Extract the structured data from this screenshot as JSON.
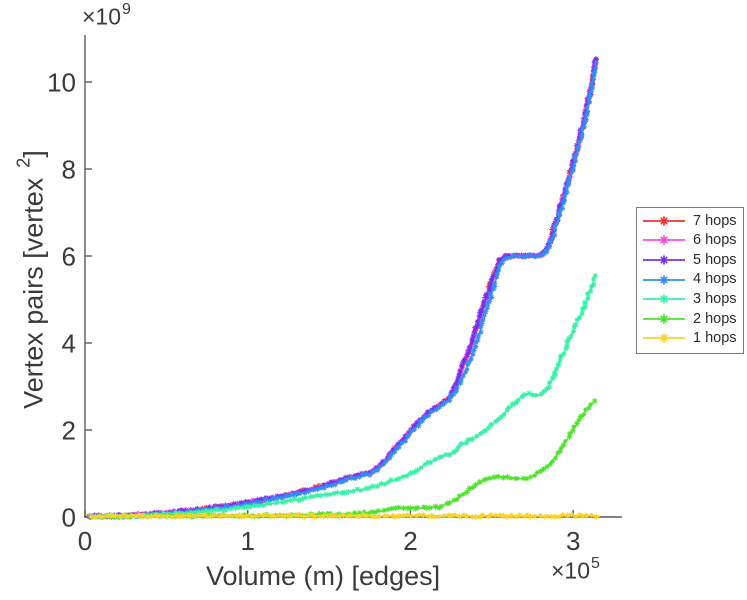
{
  "figure": {
    "background": "#ffffff",
    "axis_color": "#5a5a5a",
    "text_color": "#3a3a3a",
    "legend_border_color": "#7a7a7a"
  },
  "chart_data": {
    "type": "line",
    "title": "",
    "xlabel": "Volume (m) [edges]",
    "ylabel": "Vertex pairs [vertex²]",
    "ylabel_parts": {
      "pre": "Vertex pairs [vertex",
      "sup": "2",
      "post": "]"
    },
    "x_offset": {
      "base": "×10",
      "exp": "5"
    },
    "y_offset": {
      "base": "×10",
      "exp": "9"
    },
    "x_units": "edges (x values in units of 1e5)",
    "y_units": "vertex pairs (y values in units of 1e9)",
    "xlim": [
      0,
      3.3
    ],
    "ylim": [
      0,
      11.08
    ],
    "xticks": [
      0,
      1,
      2,
      3
    ],
    "yticks": [
      0,
      2,
      4,
      6,
      8,
      10
    ],
    "grid": false,
    "marker": "asterisk",
    "legend": {
      "position": "right-outside"
    },
    "series": [
      {
        "name": "7 hops",
        "color": "#f5322a",
        "x": [
          0.03,
          0.15,
          0.3,
          0.45,
          0.6,
          0.75,
          0.9,
          1.05,
          1.2,
          1.35,
          1.5,
          1.6,
          1.68,
          1.75,
          1.8,
          1.85,
          1.9,
          1.95,
          2.0,
          2.05,
          2.1,
          2.15,
          2.2,
          2.24,
          2.28,
          2.32,
          2.36,
          2.4,
          2.44,
          2.48,
          2.52,
          2.55,
          2.58,
          2.65,
          2.72,
          2.8,
          2.84,
          2.88,
          2.92,
          2.96,
          3.0,
          3.04,
          3.08,
          3.11,
          3.14
        ],
        "y": [
          0.02,
          0.03,
          0.05,
          0.09,
          0.14,
          0.2,
          0.27,
          0.37,
          0.48,
          0.6,
          0.76,
          0.88,
          0.97,
          1.02,
          1.15,
          1.32,
          1.55,
          1.75,
          1.98,
          2.18,
          2.36,
          2.5,
          2.62,
          2.75,
          3.05,
          3.45,
          3.85,
          4.3,
          4.75,
          5.2,
          5.65,
          5.92,
          6.0,
          6.0,
          6.0,
          6.02,
          6.15,
          6.6,
          7.1,
          7.6,
          8.15,
          8.7,
          9.35,
          9.9,
          10.55
        ]
      },
      {
        "name": "6 hops",
        "color": "#f44fe2",
        "x": [
          0.03,
          0.15,
          0.3,
          0.45,
          0.6,
          0.75,
          0.9,
          1.05,
          1.2,
          1.35,
          1.5,
          1.6,
          1.68,
          1.75,
          1.8,
          1.85,
          1.9,
          1.95,
          2.0,
          2.05,
          2.1,
          2.15,
          2.2,
          2.24,
          2.28,
          2.32,
          2.36,
          2.4,
          2.44,
          2.48,
          2.52,
          2.55,
          2.58,
          2.65,
          2.72,
          2.8,
          2.84,
          2.88,
          2.92,
          2.96,
          3.0,
          3.04,
          3.08,
          3.11,
          3.14
        ],
        "y": [
          0.02,
          0.03,
          0.05,
          0.09,
          0.14,
          0.2,
          0.27,
          0.37,
          0.48,
          0.6,
          0.76,
          0.88,
          0.97,
          1.02,
          1.15,
          1.32,
          1.55,
          1.75,
          1.98,
          2.18,
          2.36,
          2.5,
          2.62,
          2.75,
          3.05,
          3.45,
          3.85,
          4.3,
          4.75,
          5.2,
          5.65,
          5.92,
          6.0,
          6.0,
          6.0,
          6.02,
          6.15,
          6.6,
          7.1,
          7.6,
          8.15,
          8.7,
          9.35,
          9.9,
          10.55
        ]
      },
      {
        "name": "5 hops",
        "color": "#7430f0",
        "x": [
          0.03,
          0.15,
          0.3,
          0.45,
          0.6,
          0.75,
          0.9,
          1.05,
          1.2,
          1.35,
          1.5,
          1.6,
          1.68,
          1.75,
          1.8,
          1.85,
          1.9,
          1.95,
          2.0,
          2.05,
          2.1,
          2.15,
          2.2,
          2.24,
          2.28,
          2.32,
          2.36,
          2.4,
          2.44,
          2.48,
          2.52,
          2.55,
          2.58,
          2.65,
          2.72,
          2.8,
          2.84,
          2.88,
          2.92,
          2.96,
          3.0,
          3.04,
          3.08,
          3.11,
          3.14
        ],
        "y": [
          0.02,
          0.03,
          0.05,
          0.09,
          0.14,
          0.2,
          0.27,
          0.37,
          0.48,
          0.6,
          0.76,
          0.88,
          0.97,
          1.02,
          1.15,
          1.32,
          1.55,
          1.75,
          1.98,
          2.18,
          2.36,
          2.5,
          2.62,
          2.75,
          3.05,
          3.45,
          3.85,
          4.3,
          4.75,
          5.2,
          5.65,
          5.92,
          6.0,
          6.0,
          6.0,
          6.02,
          6.15,
          6.6,
          7.1,
          7.6,
          8.15,
          8.7,
          9.35,
          9.9,
          10.55
        ]
      },
      {
        "name": "4 hops",
        "color": "#338df5",
        "x": [
          0.03,
          0.15,
          0.3,
          0.45,
          0.6,
          0.75,
          0.9,
          1.05,
          1.2,
          1.35,
          1.5,
          1.6,
          1.68,
          1.75,
          1.8,
          1.85,
          1.9,
          1.95,
          2.0,
          2.05,
          2.1,
          2.15,
          2.2,
          2.24,
          2.28,
          2.32,
          2.36,
          2.4,
          2.44,
          2.48,
          2.52,
          2.56,
          2.6,
          2.65,
          2.72,
          2.8,
          2.84,
          2.88,
          2.92,
          2.96,
          3.0,
          3.04,
          3.08,
          3.11,
          3.14
        ],
        "y": [
          0.01,
          0.01,
          0.02,
          0.05,
          0.1,
          0.16,
          0.23,
          0.33,
          0.44,
          0.56,
          0.72,
          0.84,
          0.93,
          0.98,
          1.11,
          1.28,
          1.5,
          1.7,
          1.93,
          2.13,
          2.31,
          2.45,
          2.58,
          2.7,
          2.9,
          3.2,
          3.55,
          3.95,
          4.4,
          4.9,
          5.4,
          5.85,
          5.98,
          6.0,
          6.0,
          6.0,
          6.1,
          6.5,
          7.0,
          7.5,
          8.05,
          8.6,
          9.25,
          9.8,
          10.45
        ]
      },
      {
        "name": "3 hops",
        "color": "#38f0a6",
        "x": [
          0.03,
          0.2,
          0.4,
          0.6,
          0.8,
          1.0,
          1.15,
          1.3,
          1.45,
          1.6,
          1.7,
          1.8,
          1.9,
          2.0,
          2.1,
          2.2,
          2.27,
          2.31,
          2.36,
          2.45,
          2.55,
          2.62,
          2.68,
          2.72,
          2.78,
          2.83,
          2.87,
          2.91,
          2.95,
          3.0,
          3.04,
          3.08,
          3.11,
          3.14
        ],
        "y": [
          0.01,
          0.02,
          0.05,
          0.09,
          0.15,
          0.23,
          0.31,
          0.4,
          0.5,
          0.57,
          0.63,
          0.72,
          0.85,
          1.0,
          1.22,
          1.4,
          1.48,
          1.65,
          1.75,
          1.95,
          2.3,
          2.55,
          2.75,
          2.82,
          2.8,
          2.88,
          3.15,
          3.5,
          3.85,
          4.3,
          4.6,
          4.95,
          5.25,
          5.6
        ]
      },
      {
        "name": "2 hops",
        "color": "#4fe42c",
        "x": [
          0.03,
          0.5,
          0.9,
          1.2,
          1.4,
          1.55,
          1.65,
          1.75,
          1.82,
          1.88,
          1.95,
          2.0,
          2.06,
          2.12,
          2.18,
          2.24,
          2.3,
          2.36,
          2.42,
          2.47,
          2.52,
          2.58,
          2.63,
          2.68,
          2.73,
          2.78,
          2.83,
          2.88,
          2.93,
          2.98,
          3.03,
          3.08,
          3.11,
          3.14
        ],
        "y": [
          0.01,
          0.02,
          0.03,
          0.04,
          0.05,
          0.06,
          0.08,
          0.1,
          0.13,
          0.17,
          0.21,
          0.22,
          0.21,
          0.2,
          0.24,
          0.32,
          0.45,
          0.62,
          0.78,
          0.88,
          0.92,
          0.93,
          0.9,
          0.88,
          0.92,
          1.0,
          1.12,
          1.32,
          1.58,
          1.88,
          2.18,
          2.45,
          2.58,
          2.68
        ]
      },
      {
        "name": "1 hops",
        "color": "#f7d22b",
        "x": [
          0.03,
          0.3,
          0.6,
          0.9,
          1.2,
          1.5,
          1.8,
          2.1,
          2.4,
          2.7,
          3.0,
          3.14
        ],
        "y": [
          0.02,
          0.02,
          0.025,
          0.02,
          0.03,
          0.025,
          0.02,
          0.03,
          0.025,
          0.02,
          0.03,
          0.025
        ]
      }
    ]
  }
}
